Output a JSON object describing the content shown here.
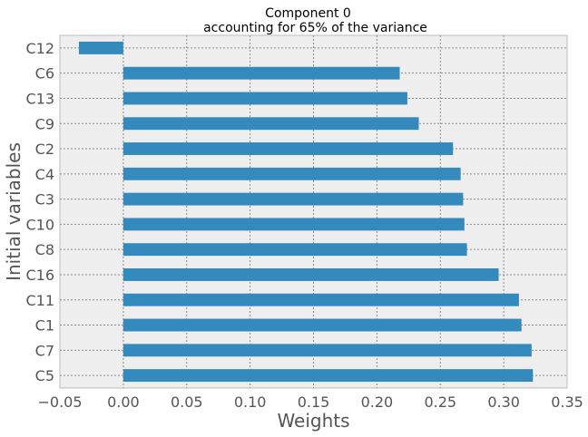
{
  "chart_data": {
    "type": "bar",
    "orientation": "horizontal",
    "title": "Component 0",
    "subtitle": "accounting for 65% of the variance",
    "xlabel": "Weights",
    "ylabel": "Initial variables",
    "xlim": [
      -0.05,
      0.35
    ],
    "xticks": [
      -0.05,
      0.0,
      0.05,
      0.1,
      0.15,
      0.2,
      0.25,
      0.3,
      0.35
    ],
    "xtick_labels": [
      "−0.05",
      "0.00",
      "0.05",
      "0.10",
      "0.15",
      "0.20",
      "0.25",
      "0.30",
      "0.35"
    ],
    "grid": true,
    "bar_color": "#348abd",
    "background_color": "#eeeeee",
    "categories": [
      "C12",
      "C6",
      "C13",
      "C9",
      "C2",
      "C4",
      "C3",
      "C10",
      "C8",
      "C16",
      "C11",
      "C1",
      "C7",
      "C5"
    ],
    "values": [
      -0.035,
      0.218,
      0.224,
      0.233,
      0.26,
      0.266,
      0.268,
      0.269,
      0.271,
      0.296,
      0.312,
      0.314,
      0.322,
      0.323
    ]
  }
}
